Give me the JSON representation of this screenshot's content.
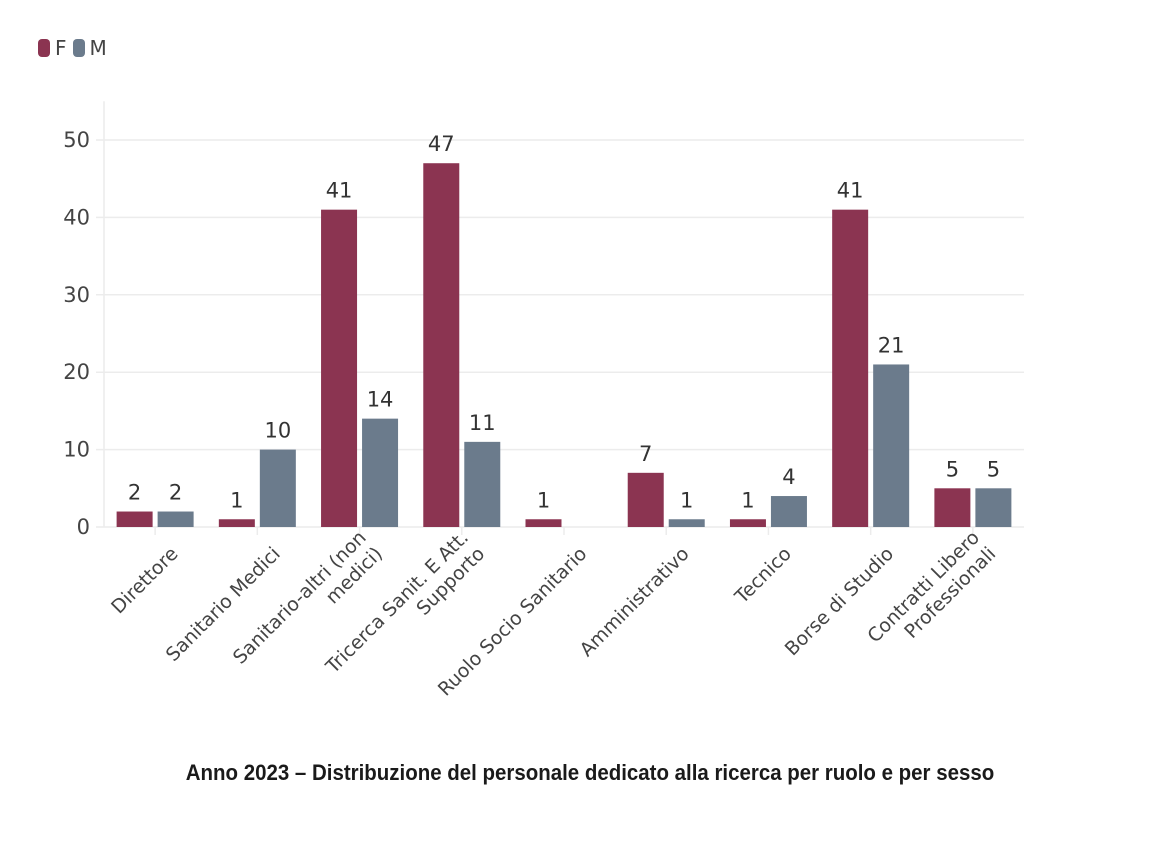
{
  "legend": [
    {
      "label": "F",
      "color": "#8b3451"
    },
    {
      "label": "M",
      "color": "#6b7b8c"
    }
  ],
  "caption": "Anno 2023 – Distribuzione del personale dedicato alla ricerca per ruolo e per sesso",
  "chart_data": {
    "type": "bar",
    "title": "Anno 2023 – Distribuzione del personale dedicato alla ricerca per ruolo e per sesso",
    "xlabel": "",
    "ylabel": "",
    "ylim": [
      0,
      55
    ],
    "yticks": [
      0,
      10,
      20,
      30,
      40,
      50
    ],
    "grid": true,
    "legend_position": "top-left",
    "categories": [
      [
        "Direttore"
      ],
      [
        "Sanitario Medici"
      ],
      [
        "Sanitario-altri (non",
        "medici)"
      ],
      [
        "Tricerca Sanit. E Att.",
        "Supporto"
      ],
      [
        "Ruolo Socio Sanitario"
      ],
      [
        "Amministrativo"
      ],
      [
        "Tecnico"
      ],
      [
        "Borse di Studio"
      ],
      [
        "Contratti Libero",
        "Professionali"
      ]
    ],
    "series": [
      {
        "name": "F",
        "color": "#8b3451",
        "values": [
          2,
          1,
          41,
          47,
          1,
          7,
          1,
          41,
          5
        ]
      },
      {
        "name": "M",
        "color": "#6b7b8c",
        "values": [
          2,
          10,
          14,
          11,
          null,
          1,
          4,
          21,
          5
        ]
      }
    ]
  }
}
